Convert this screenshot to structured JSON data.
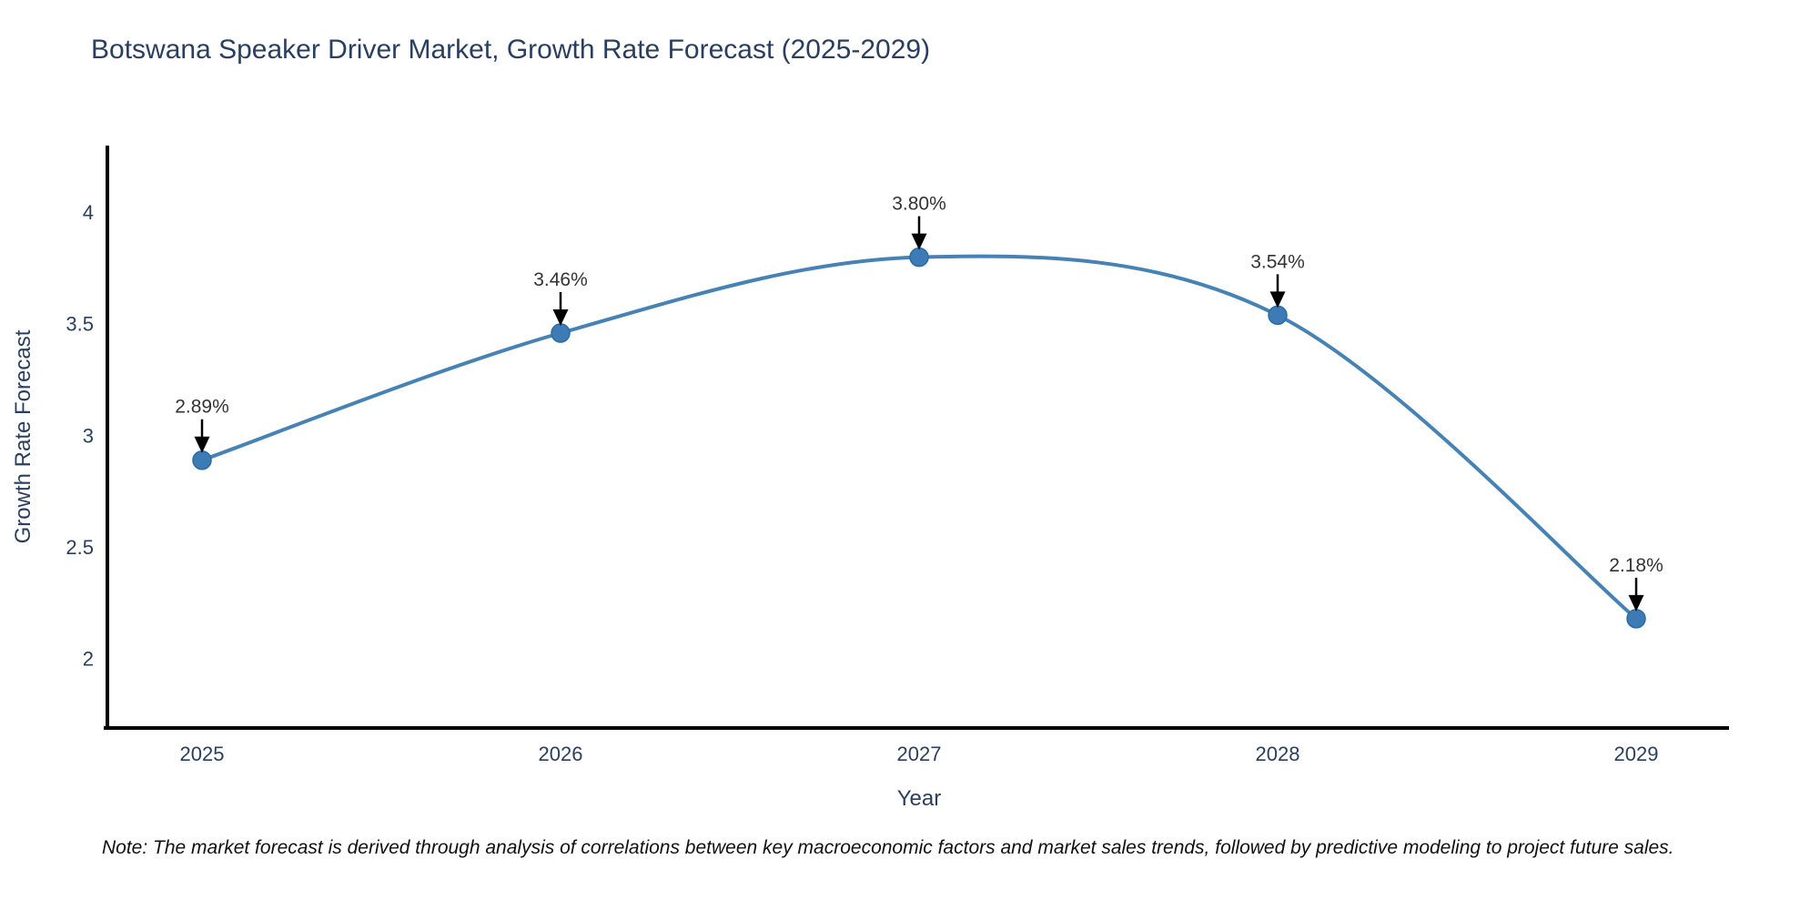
{
  "title": "Botswana Speaker Driver Market, Growth Rate Forecast (2025-2029)",
  "note": "Note: The market forecast is derived through analysis of correlations between key macroeconomic factors and market sales trends, followed by predictive modeling to project future sales.",
  "chart_data": {
    "type": "line",
    "title": "Botswana Speaker Driver Market, Growth Rate Forecast (2025-2029)",
    "categories": [
      "2025",
      "2026",
      "2027",
      "2028",
      "2029"
    ],
    "series": [
      {
        "name": "Growth Rate Forecast",
        "values": [
          2.89,
          3.46,
          3.8,
          3.54,
          2.18
        ]
      }
    ],
    "point_labels": [
      "2.89%",
      "3.46%",
      "3.80%",
      "3.54%",
      "2.18%"
    ],
    "xlabel": "Year",
    "ylabel": "Growth Rate Forecast",
    "y_ticks": [
      2,
      2.5,
      3,
      3.5,
      4
    ],
    "ylim": [
      1.69,
      4.3
    ],
    "grid": false,
    "legend": "none",
    "line_shape": "spline",
    "annotations_style": "label-above-with-down-arrow",
    "colors": {
      "line": "#4682b4",
      "marker_fill": "#3d7bb6",
      "marker_edge": "#2d6ba3",
      "annotation_text": "#333333",
      "arrow": "#000000",
      "axis_text": "#2a3f5f",
      "spine": "#000000",
      "background": "#ffffff"
    }
  }
}
